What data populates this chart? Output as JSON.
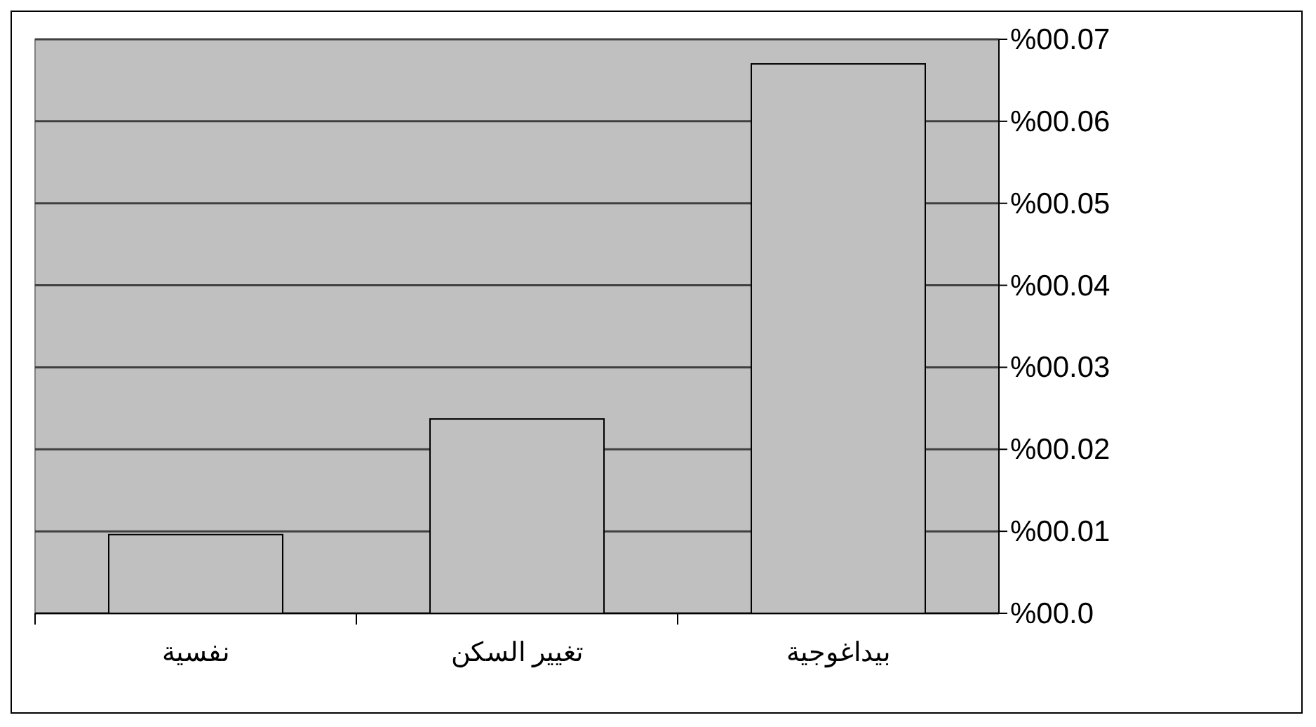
{
  "chart_data": {
    "type": "bar",
    "categories": [
      "نفسية",
      "تغيير السكن",
      "بيداغوجية"
    ],
    "values": [
      0.0096,
      0.0237,
      0.067
    ],
    "color": "#c0c0c0",
    "ylim": [
      0,
      0.07
    ],
    "yticks": [
      {
        "value": 0,
        "label": "%00.0"
      },
      {
        "value": 0.01,
        "label": "%00.01"
      },
      {
        "value": 0.02,
        "label": "%00.02"
      },
      {
        "value": 0.03,
        "label": "%00.03"
      },
      {
        "value": 0.04,
        "label": "%00.04"
      },
      {
        "value": 0.05,
        "label": "%00.05"
      },
      {
        "value": 0.06,
        "label": "%00.06"
      },
      {
        "value": 0.07,
        "label": "%00.07"
      }
    ],
    "grid": "y"
  }
}
